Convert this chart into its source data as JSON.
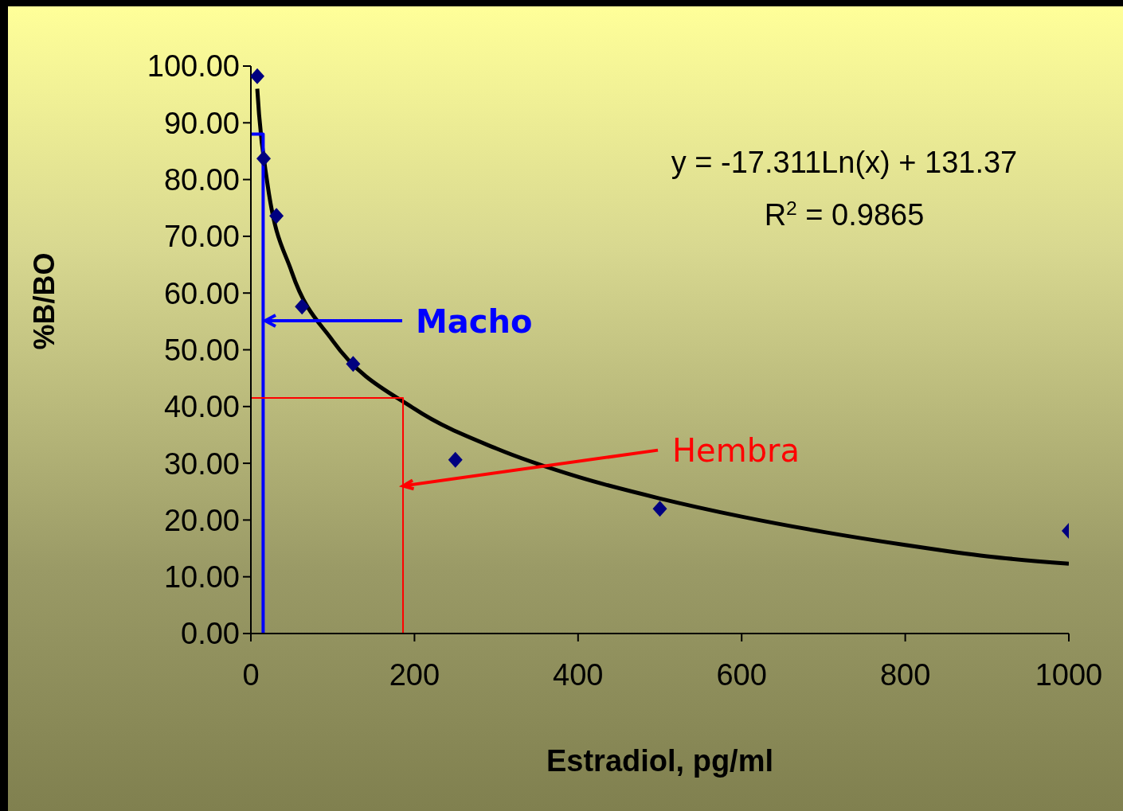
{
  "chart_data": {
    "type": "scatter",
    "xlabel": "Estradiol, pg/ml",
    "ylabel": "%B/BO",
    "xlim": [
      0,
      1000
    ],
    "xticks": [
      0,
      200,
      400,
      600,
      800,
      1000
    ],
    "ylim": [
      0,
      100
    ],
    "yticks": [
      {
        "value": 0,
        "label": "0.00"
      },
      {
        "value": 10,
        "label": "10.00"
      },
      {
        "value": 20,
        "label": "20.00"
      },
      {
        "value": 30,
        "label": "30.00"
      },
      {
        "value": 40,
        "label": "40.00"
      },
      {
        "value": 50,
        "label": "50.00"
      },
      {
        "value": 60,
        "label": "60.00"
      },
      {
        "value": 70,
        "label": "70.00"
      },
      {
        "value": 80,
        "label": "80.00"
      },
      {
        "value": 90,
        "label": "90.00"
      },
      {
        "value": 100,
        "label": "100.00"
      }
    ],
    "series": [
      {
        "color": "#000080",
        "marker": "diamond",
        "x": [
          7.8,
          15.6,
          31.25,
          62.5,
          125,
          250,
          500,
          1000
        ],
        "values": [
          98.2,
          83.7,
          73.6,
          57.6,
          47.5,
          30.6,
          22.0,
          18.1
        ]
      },
      {
        "type": "line",
        "marker": "none",
        "color": "#000000",
        "x": [
          7.8,
          10,
          20,
          50,
          100,
          200,
          300,
          400,
          500,
          600,
          700,
          800,
          900,
          1000
        ],
        "values": [
          96,
          91.5,
          79.5,
          63.7,
          51.6,
          39.6,
          32.6,
          27.6,
          23.8,
          20.6,
          17.9,
          15.6,
          13.6,
          12.3
        ]
      },
      {
        "type": "line",
        "marker": "none",
        "color": "#0000ff",
        "x": [
          0,
          15,
          15
        ],
        "values": [
          88,
          88,
          0
        ]
      },
      {
        "type": "line",
        "marker": "none",
        "color": "#ff0000",
        "x": [
          0,
          186,
          186
        ],
        "values": [
          41.5,
          41.5,
          0
        ]
      }
    ],
    "annotations": [
      "y = -17.311Ln(x) + 131.37",
      "R$^{2}$ = 0.9865",
      "Macho",
      {
        "text": "Hembra",
        "x": 186,
        "y": 26
      }
    ]
  }
}
